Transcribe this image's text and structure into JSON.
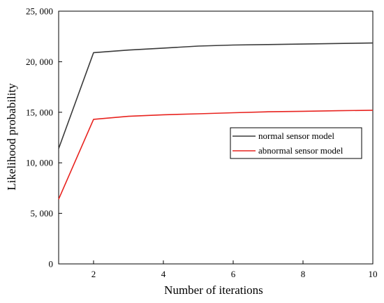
{
  "chart_data": {
    "type": "line",
    "xlabel": "Number of iterations",
    "ylabel": "Likelihood probability",
    "xlim": [
      1,
      10
    ],
    "ylim": [
      0,
      25000
    ],
    "xticks": [
      2,
      4,
      6,
      8,
      10
    ],
    "xtick_labels": [
      "2",
      "4",
      "6",
      "8",
      "10"
    ],
    "yticks": [
      0,
      5000,
      10000,
      15000,
      20000,
      25000
    ],
    "ytick_labels": [
      "0",
      "5, 000",
      "10, 000",
      "15, 000",
      "20, 000",
      "25, 000"
    ],
    "grid": false,
    "legend_position": "center-right",
    "x": [
      1,
      2,
      3,
      4,
      5,
      6,
      7,
      8,
      9,
      10
    ],
    "series": [
      {
        "name": "normal sensor model",
        "color": "#3a3a3a",
        "values": [
          11400,
          20900,
          21150,
          21350,
          21550,
          21650,
          21700,
          21750,
          21800,
          21850
        ]
      },
      {
        "name": "abnormal sensor model",
        "color": "#e8231f",
        "values": [
          6400,
          14300,
          14600,
          14750,
          14850,
          14950,
          15050,
          15100,
          15150,
          15200
        ]
      }
    ]
  }
}
